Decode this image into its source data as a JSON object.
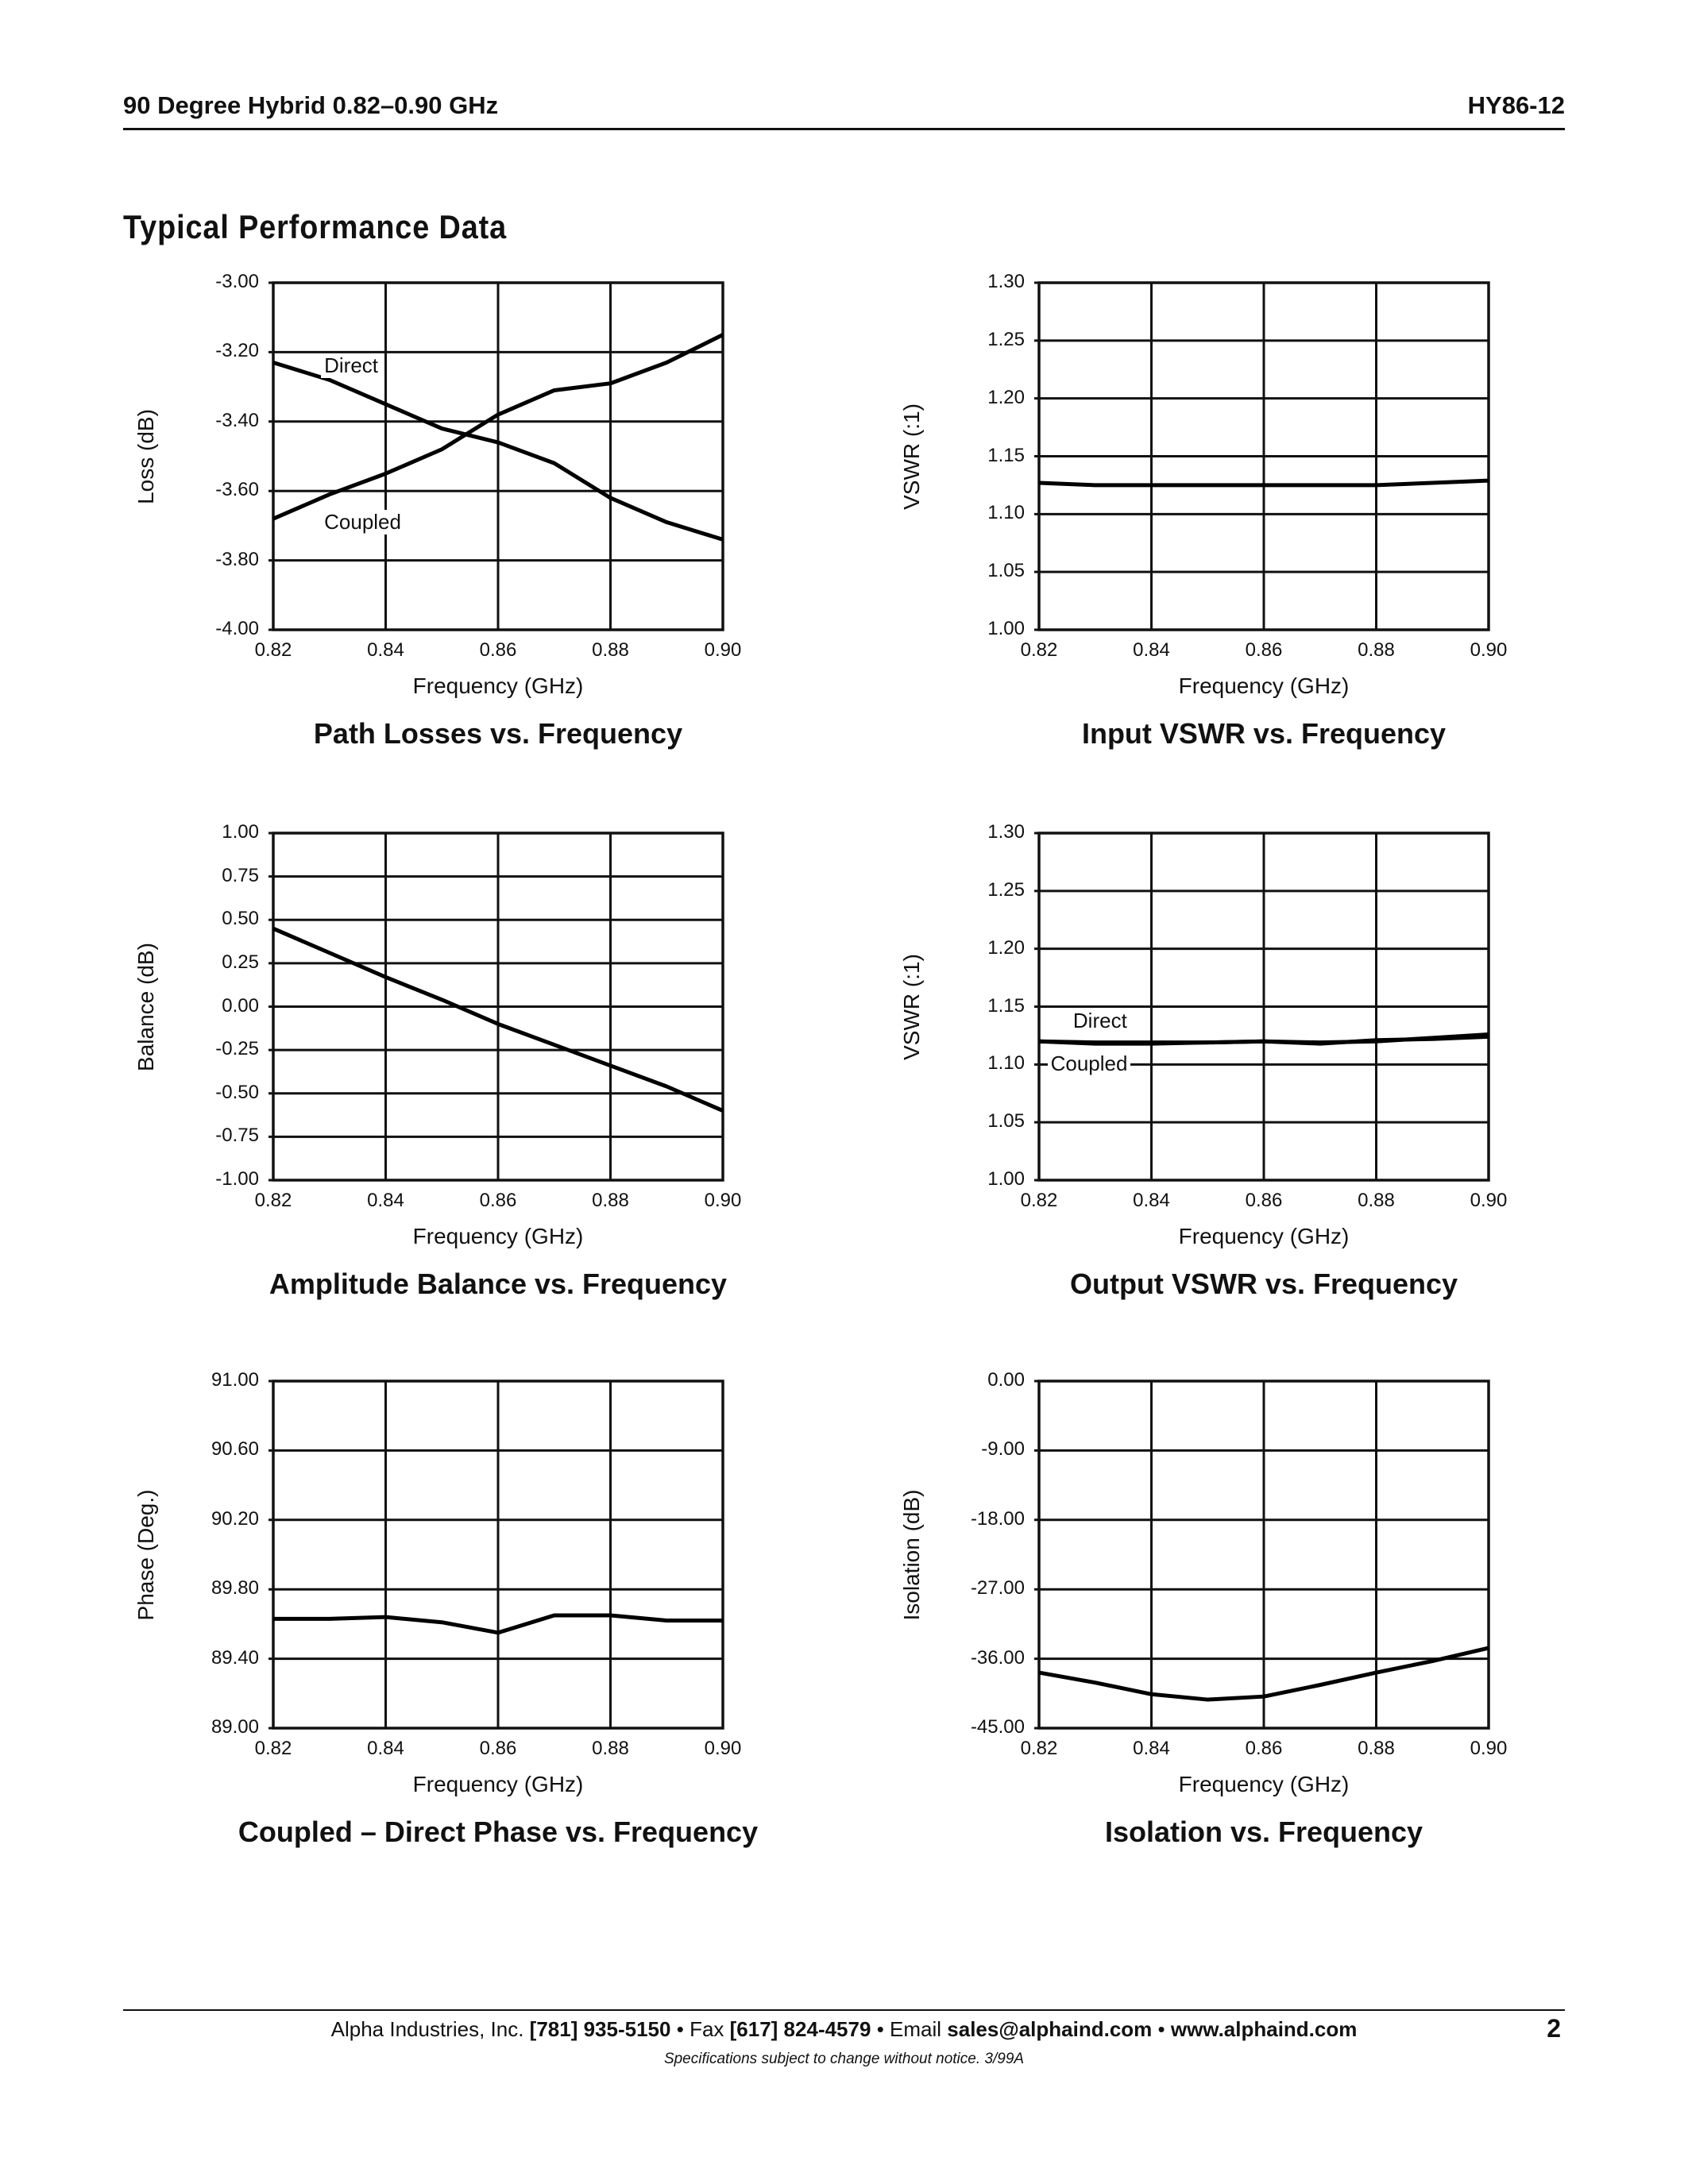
{
  "header": {
    "left": "90 Degree Hybrid 0.82–0.90 GHz",
    "right": "HY86-12"
  },
  "section_title": "Typical Performance Data",
  "footer": {
    "company": "Alpha Industries, Inc.",
    "phone": "[781] 935-5150",
    "sep1": "•",
    "fax_label": "Fax",
    "fax": "[617] 824-4579",
    "sep2": "•",
    "email_label": "Email",
    "email": "sales@alphaind.com",
    "sep3": "•",
    "website": "www.alphaind.com",
    "page_number": "2",
    "note": "Specifications subject to change without notice.  3/99A"
  },
  "chart_data": [
    {
      "type": "line",
      "title": "Path Losses vs. Frequency",
      "xlabel": "Frequency (GHz)",
      "ylabel": "Loss (dB)",
      "xlim": [
        0.82,
        0.9
      ],
      "ylim": [
        -4.0,
        -3.0
      ],
      "xticks": [
        "0.82",
        "0.84",
        "0.86",
        "0.88",
        "0.90"
      ],
      "yticks": [
        "-3.00",
        "-3.20",
        "-3.40",
        "-3.60",
        "-3.80",
        "-4.00"
      ],
      "grid": true,
      "x": [
        0.82,
        0.83,
        0.84,
        0.85,
        0.86,
        0.87,
        0.88,
        0.89,
        0.9
      ],
      "series": [
        {
          "name": "Direct",
          "values": [
            -3.23,
            -3.28,
            -3.35,
            -3.42,
            -3.46,
            -3.52,
            -3.62,
            -3.69,
            -3.74
          ]
        },
        {
          "name": "Coupled",
          "values": [
            -3.68,
            -3.61,
            -3.55,
            -3.48,
            -3.38,
            -3.31,
            -3.29,
            -3.23,
            -3.15
          ]
        }
      ],
      "annotations": [
        {
          "text": "Direct",
          "x": 0.8285,
          "y": -3.24
        },
        {
          "text": "Coupled",
          "x": 0.8285,
          "y": -3.69
        }
      ]
    },
    {
      "type": "line",
      "title": "Input VSWR vs. Frequency",
      "xlabel": "Frequency (GHz)",
      "ylabel": "VSWR (:1)",
      "xlim": [
        0.82,
        0.9
      ],
      "ylim": [
        1.0,
        1.3
      ],
      "xticks": [
        "0.82",
        "0.84",
        "0.86",
        "0.88",
        "0.90"
      ],
      "yticks": [
        "1.30",
        "1.25",
        "1.20",
        "1.15",
        "1.10",
        "1.05",
        "1.00"
      ],
      "grid": true,
      "x": [
        0.82,
        0.83,
        0.84,
        0.85,
        0.86,
        0.87,
        0.88,
        0.89,
        0.9
      ],
      "series": [
        {
          "values": [
            1.127,
            1.125,
            1.125,
            1.125,
            1.125,
            1.125,
            1.125,
            1.127,
            1.129
          ]
        }
      ],
      "annotations": []
    },
    {
      "type": "line",
      "title": "Amplitude Balance vs. Frequency",
      "xlabel": "Frequency (GHz)",
      "ylabel": "Balance (dB)",
      "xlim": [
        0.82,
        0.9
      ],
      "ylim": [
        -1.0,
        1.0
      ],
      "xticks": [
        "0.82",
        "0.84",
        "0.86",
        "0.88",
        "0.90"
      ],
      "yticks": [
        "1.00",
        "0.75",
        "0.50",
        "0.25",
        "0.00",
        "-0.25",
        "-0.50",
        "-0.75",
        "-1.00"
      ],
      "grid": true,
      "x": [
        0.82,
        0.83,
        0.84,
        0.85,
        0.86,
        0.87,
        0.88,
        0.89,
        0.9
      ],
      "series": [
        {
          "values": [
            0.45,
            0.31,
            0.17,
            0.04,
            -0.1,
            -0.22,
            -0.34,
            -0.46,
            -0.6
          ]
        }
      ],
      "annotations": []
    },
    {
      "type": "line",
      "title": "Output VSWR vs. Frequency",
      "xlabel": "Frequency (GHz)",
      "ylabel": "VSWR (:1)",
      "xlim": [
        0.82,
        0.9
      ],
      "ylim": [
        1.0,
        1.3
      ],
      "xticks": [
        "0.82",
        "0.84",
        "0.86",
        "0.88",
        "0.90"
      ],
      "yticks": [
        "1.30",
        "1.25",
        "1.20",
        "1.15",
        "1.10",
        "1.05",
        "1.00"
      ],
      "grid": true,
      "x": [
        0.82,
        0.83,
        0.84,
        0.85,
        0.86,
        0.87,
        0.88,
        0.89,
        0.9
      ],
      "series": [
        {
          "name": "Direct",
          "values": [
            1.12,
            1.119,
            1.119,
            1.119,
            1.12,
            1.119,
            1.12,
            1.123,
            1.126
          ]
        },
        {
          "name": "Coupled",
          "values": [
            1.12,
            1.118,
            1.118,
            1.119,
            1.12,
            1.118,
            1.121,
            1.122,
            1.124
          ]
        }
      ],
      "annotations": [
        {
          "text": "Direct",
          "x": 0.8255,
          "y": 1.137
        },
        {
          "text": "Coupled",
          "x": 0.8215,
          "y": 1.1
        }
      ]
    },
    {
      "type": "line",
      "title": "Coupled – Direct Phase vs. Frequency",
      "xlabel": "Frequency (GHz)",
      "ylabel": "Phase (Deg.)",
      "xlim": [
        0.82,
        0.9
      ],
      "ylim": [
        89.0,
        91.0
      ],
      "xticks": [
        "0.82",
        "0.84",
        "0.86",
        "0.88",
        "0.90"
      ],
      "yticks": [
        "91.00",
        "90.60",
        "90.20",
        "89.80",
        "89.40",
        "89.00"
      ],
      "grid": true,
      "x": [
        0.82,
        0.83,
        0.84,
        0.85,
        0.86,
        0.87,
        0.88,
        0.89,
        0.9
      ],
      "series": [
        {
          "values": [
            89.63,
            89.63,
            89.64,
            89.61,
            89.55,
            89.65,
            89.65,
            89.62,
            89.62
          ]
        }
      ],
      "annotations": []
    },
    {
      "type": "line",
      "title": "Isolation vs. Frequency",
      "xlabel": "Frequency (GHz)",
      "ylabel": "Isolation (dB)",
      "xlim": [
        0.82,
        0.9
      ],
      "ylim": [
        -45.0,
        0.0
      ],
      "xticks": [
        "0.82",
        "0.84",
        "0.86",
        "0.88",
        "0.90"
      ],
      "yticks": [
        "0.00",
        "-9.00",
        "-18.00",
        "-27.00",
        "-36.00",
        "-45.00"
      ],
      "grid": true,
      "x": [
        0.82,
        0.83,
        0.84,
        0.85,
        0.86,
        0.87,
        0.88,
        0.89,
        0.9
      ],
      "series": [
        {
          "values": [
            -37.8,
            -39.1,
            -40.6,
            -41.3,
            -40.9,
            -39.4,
            -37.8,
            -36.3,
            -34.6
          ]
        }
      ],
      "annotations": []
    }
  ]
}
